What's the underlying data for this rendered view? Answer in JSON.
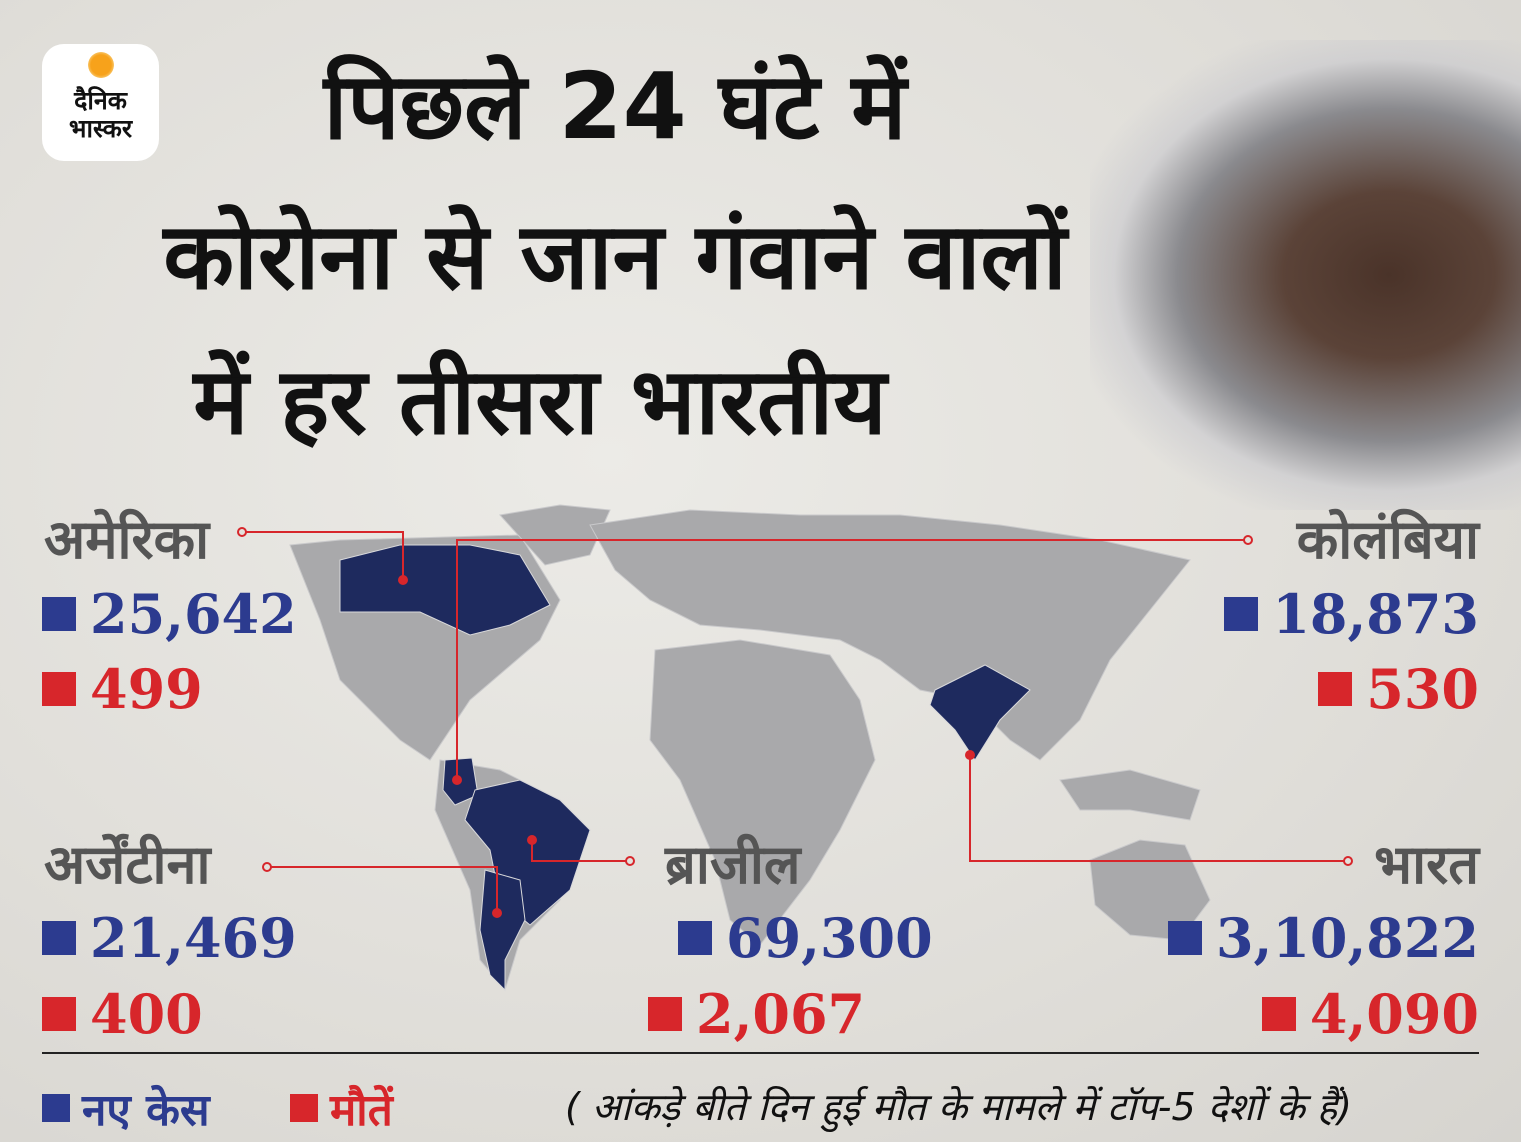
{
  "logo": {
    "line1": "दैनिक",
    "line2": "भास्कर"
  },
  "title": [
    "पिछले 24 घंटे में",
    "कोरोना से जान गंवाने वालों",
    "में हर तीसरा भारतीय"
  ],
  "countries": [
    {
      "name": "अमेरिका",
      "cases": "25,642",
      "deaths": "499"
    },
    {
      "name": "कोलंबिया",
      "cases": "18,873",
      "deaths": "530"
    },
    {
      "name": "अर्जेंटीना",
      "cases": "21,469",
      "deaths": "400"
    },
    {
      "name": "ब्राजील",
      "cases": "69,300",
      "deaths": "2,067"
    },
    {
      "name": "भारत",
      "cases": "3,10,822",
      "deaths": "4,090"
    }
  ],
  "legend": {
    "cases": "नए केस",
    "deaths": "मौतें"
  },
  "note": "( आंकड़े बीते दिन हुई मौत के मामले में टॉप-5 देशों के हैं)",
  "colors": {
    "cases": "#2c3b8f",
    "deaths": "#d7262b",
    "highlight": "#1e2a5e",
    "land": "#a9a9ab",
    "line": "#d7262b"
  }
}
